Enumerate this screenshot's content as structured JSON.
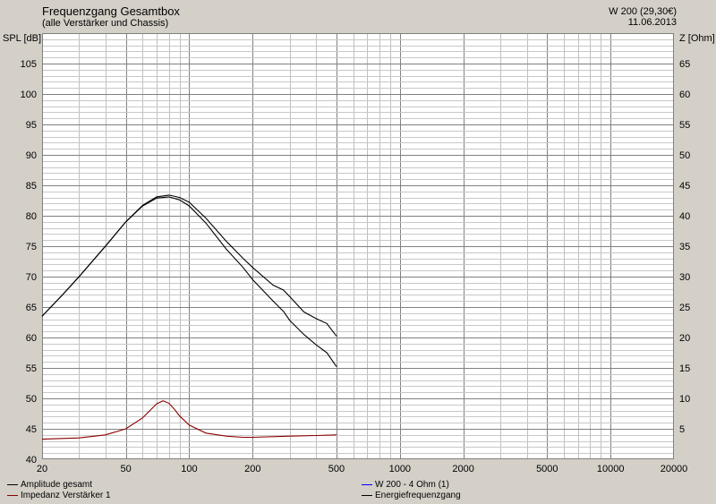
{
  "header": {
    "title": "Frequenzgang Gesamtbox",
    "subtitle": "(alle Verstärker und Chassis)",
    "info_line1": "W 200 (29,30€)",
    "info_line2": "11.06.2013"
  },
  "chart_data": {
    "type": "line",
    "xscale": "log",
    "xlim": [
      20,
      20000
    ],
    "x_ticks": [
      20,
      50,
      100,
      200,
      500,
      1000,
      2000,
      5000,
      10000,
      20000
    ],
    "x_tick_labels": [
      "20",
      "50",
      "100",
      "200",
      "500",
      "1000",
      "2000",
      "5000",
      "10000",
      "20000"
    ],
    "ylabel_left": "SPL [dB]",
    "ylim_left": [
      40,
      110
    ],
    "y_ticks_left": [
      40,
      45,
      50,
      55,
      60,
      65,
      70,
      75,
      80,
      85,
      90,
      95,
      100,
      105
    ],
    "ylabel_right": "Z [Ohm]",
    "ylim_right": [
      0,
      70
    ],
    "y_ticks_right": [
      5,
      10,
      15,
      20,
      25,
      30,
      35,
      40,
      45,
      50,
      55,
      60,
      65
    ],
    "grid": true,
    "legend_placement": "bottom",
    "series": [
      {
        "name": "Amplitude gesamt",
        "axis": "left",
        "color": "#000000",
        "x": [
          20,
          25,
          30,
          40,
          50,
          60,
          70,
          80,
          90,
          100,
          120,
          150,
          180,
          200,
          250,
          280,
          300,
          350,
          400,
          450,
          500
        ],
        "y": [
          63.5,
          67,
          70,
          75,
          79,
          81.6,
          82.9,
          83.1,
          82.6,
          81.6,
          78.8,
          74.5,
          71.5,
          69.5,
          66,
          64.3,
          62.8,
          60.5,
          58.8,
          57.5,
          55.2
        ]
      },
      {
        "name": "Energiefrequenzgang",
        "axis": "left",
        "color": "#000000",
        "x": [
          20,
          25,
          30,
          40,
          50,
          60,
          70,
          80,
          90,
          100,
          120,
          150,
          180,
          200,
          250,
          280,
          300,
          350,
          400,
          450,
          500
        ],
        "y": [
          63.5,
          67,
          70,
          75,
          79,
          81.7,
          83.1,
          83.4,
          83,
          82.2,
          79.6,
          75.8,
          73,
          71.5,
          68.6,
          67.8,
          66.7,
          64.2,
          63.1,
          62.3,
          60.2
        ]
      },
      {
        "name": "Impedanz Verstärker 1",
        "axis": "right",
        "color": "#8b0000",
        "x": [
          20,
          30,
          40,
          50,
          60,
          65,
          70,
          75,
          80,
          85,
          90,
          100,
          120,
          150,
          180,
          200,
          300,
          400,
          500
        ],
        "y": [
          3.3,
          3.5,
          4,
          5,
          6.8,
          8,
          9.1,
          9.6,
          9.2,
          8.2,
          7.1,
          5.6,
          4.3,
          3.8,
          3.6,
          3.6,
          3.8,
          3.9,
          4.0
        ]
      },
      {
        "name": "W 200 - 4 Ohm (1)",
        "axis": "right",
        "color": "#0000ff",
        "x": [],
        "y": []
      }
    ],
    "legend": [
      {
        "name": "Amplitude gesamt",
        "color": "#000000"
      },
      {
        "name": "Impedanz Verstärker 1",
        "color": "#8b0000"
      },
      {
        "name": "W 200 - 4 Ohm (1)",
        "color": "#0000ff"
      },
      {
        "name": "Energiefrequenzgang",
        "color": "#000000"
      }
    ]
  }
}
